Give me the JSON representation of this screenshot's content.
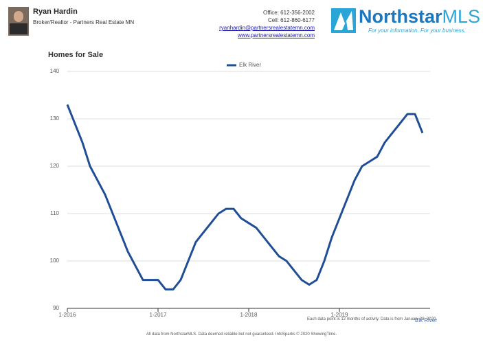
{
  "header": {
    "name": "Ryan Hardin",
    "role": "Broker/Realtor - Partners Real Estate MN",
    "office": "Office: 612-356-2002",
    "cell": "Cell: 612-860-6177",
    "email": "ryanhardin@partnersrealestatemn.com",
    "website": "www.partnersrealestatemn.com",
    "logo_name": "Northstar",
    "logo_suffix": "MLS",
    "logo_tagline": "For your information. For your business."
  },
  "chart_data": {
    "type": "line",
    "title": "Homes for Sale",
    "categories": [
      "1-2016",
      null,
      null,
      null,
      null,
      null,
      null,
      null,
      null,
      null,
      null,
      null,
      "1-2017",
      null,
      null,
      null,
      null,
      null,
      null,
      null,
      null,
      null,
      null,
      null,
      "1-2018",
      null,
      null,
      null,
      null,
      null,
      null,
      null,
      null,
      null,
      null,
      null,
      "1-2019",
      null,
      null,
      null,
      null,
      null,
      null,
      null,
      null,
      null,
      null,
      null
    ],
    "series": [
      {
        "name": "Elk River",
        "color": "#1f4e96",
        "values": [
          133,
          129,
          125,
          120,
          117,
          114,
          110,
          106,
          102,
          99,
          96,
          96,
          96,
          94,
          94,
          96,
          100,
          104,
          106,
          108,
          110,
          111,
          111,
          109,
          108,
          107,
          105,
          103,
          101,
          100,
          98,
          96,
          95,
          96,
          100,
          105,
          109,
          113,
          117,
          120,
          121,
          122,
          125,
          127,
          129,
          131,
          131,
          127
        ]
      }
    ],
    "ylim": [
      90,
      140
    ],
    "yticks": [
      90,
      100,
      110,
      120,
      130,
      140
    ],
    "grid": true,
    "legend": "top",
    "area_label": "Elk River",
    "note": "Each data point is 12 months of activity. Data is from January 28, 2020."
  },
  "footer": "All data from NorthstarMLS. Data deemed reliable but not guaranteed. InfoSparks © 2020 ShowingTime."
}
